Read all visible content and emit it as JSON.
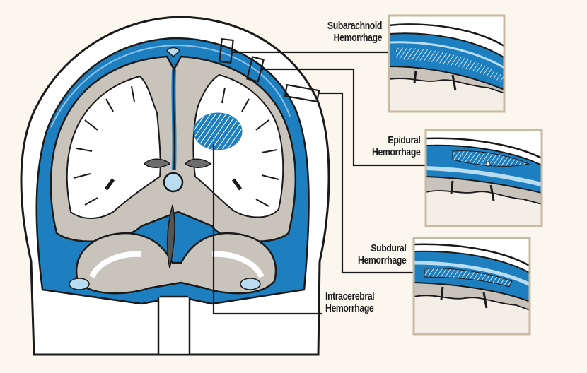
{
  "labels": {
    "subarachnoid": [
      "Subarachnoid",
      "Hemorrhage"
    ],
    "epidural": [
      "Epidural",
      "Hemorrhage"
    ],
    "subdural": [
      "Subdural",
      "Hemorrhage"
    ],
    "intracerebral": [
      "Intracerebral",
      "Hemorrhage"
    ]
  },
  "colors": {
    "background": "#fbf7ee",
    "skull": "#ffffff",
    "csf_blue": "#1e7fc0",
    "light_blue": "#b9dcf1",
    "gray_matter": "#c9c4bb",
    "white_matter": "#ffffff",
    "outline": "#1a1a1a",
    "inset_frame": "#c8b9a2"
  }
}
